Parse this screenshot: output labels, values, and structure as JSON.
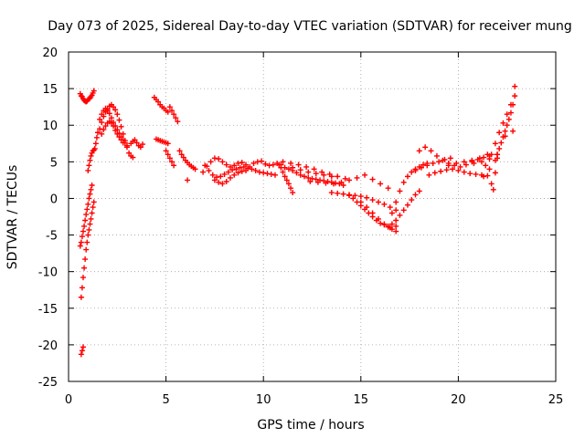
{
  "chart_data": {
    "type": "scatter",
    "title": "Day 073 of 2025, Sidereal Day-to-day VTEC variation (SDTVAR) for receiver mung",
    "xlabel": "GPS time / hours",
    "ylabel": "SDTVAR / TECUs",
    "xlim": [
      0,
      25
    ],
    "ylim": [
      -25,
      20
    ],
    "xticks": [
      "0",
      "5",
      "10",
      "15",
      "20",
      "25"
    ],
    "yticks": [
      "-25",
      "-20",
      "-15",
      "-10",
      "-5",
      "0",
      "5",
      "10",
      "15",
      "20"
    ],
    "grid": true,
    "marker": "+",
    "marker_color": "#ff0000",
    "series": [
      {
        "name": "SDTVAR",
        "x": [
          0.6,
          0.65,
          0.7,
          0.75,
          0.8,
          0.85,
          0.9,
          0.95,
          1.0,
          1.05,
          1.1,
          1.15,
          1.2,
          1.25,
          1.3,
          0.65,
          0.7,
          0.75,
          0.8,
          0.85,
          0.9,
          0.95,
          1.0,
          1.05,
          1.1,
          1.15,
          1.2,
          1.25,
          1.3,
          0.6,
          0.65,
          0.7,
          0.75,
          0.8,
          0.85,
          0.9,
          0.95,
          1.0,
          1.05,
          1.1,
          1.15,
          1.2,
          0.65,
          0.7,
          0.75,
          1.0,
          1.05,
          1.1,
          1.15,
          1.2,
          1.25,
          1.3,
          1.35,
          1.4,
          1.45,
          1.5,
          1.6,
          1.7,
          1.8,
          1.9,
          2.0,
          2.1,
          2.2,
          2.3,
          2.4,
          2.5,
          2.6,
          2.7,
          2.8,
          2.9,
          3.0,
          3.1,
          3.2,
          3.3,
          1.6,
          1.7,
          1.8,
          1.9,
          2.0,
          2.1,
          2.2,
          2.3,
          2.4,
          2.5,
          2.6,
          2.7,
          2.8,
          2.9,
          3.0,
          1.7,
          1.8,
          1.9,
          2.0,
          2.1,
          2.2,
          2.3,
          2.4,
          2.5,
          2.6,
          2.7,
          2.8,
          3.2,
          3.3,
          3.4,
          3.5,
          3.6,
          3.7,
          3.8,
          4.4,
          4.5,
          4.6,
          4.7,
          4.8,
          4.9,
          5.0,
          5.1,
          5.2,
          5.3,
          5.4,
          5.5,
          5.6,
          4.5,
          4.6,
          4.7,
          4.8,
          4.9,
          5.0,
          5.1,
          5.0,
          5.1,
          5.2,
          5.3,
          5.4,
          5.7,
          5.8,
          5.9,
          6.0,
          6.1,
          6.2,
          6.3,
          6.4,
          6.5,
          6.1,
          6.9,
          7.1,
          7.3,
          7.5,
          7.7,
          7.9,
          8.1,
          8.3,
          8.5,
          8.7,
          8.9,
          9.1,
          9.3,
          9.5,
          9.7,
          9.9,
          10.1,
          10.3,
          10.5,
          10.7,
          10.9,
          11.1,
          11.3,
          11.5,
          11.7,
          11.9,
          12.1,
          12.3,
          12.5,
          12.7,
          12.9,
          13.1,
          13.3,
          13.5,
          13.7,
          13.9,
          14.1,
          7.0,
          7.2,
          7.4,
          7.6,
          7.8,
          8.0,
          8.2,
          8.4,
          8.6,
          8.8,
          9.0,
          9.2,
          9.4,
          9.6,
          9.8,
          10.0,
          10.2,
          10.4,
          10.6,
          7.5,
          7.7,
          7.9,
          8.1,
          8.3,
          8.5,
          8.7,
          8.9,
          9.1,
          10.8,
          10.9,
          11.0,
          11.1,
          11.2,
          11.3,
          11.4,
          11.5,
          11.0,
          11.4,
          11.8,
          12.2,
          12.6,
          13.0,
          13.4,
          13.8,
          14.2,
          11.5,
          11.9,
          12.3,
          12.7,
          13.1,
          13.5,
          12.4,
          12.8,
          13.2,
          13.6,
          14.0,
          14.4,
          14.8,
          15.2,
          15.6,
          16.0,
          16.4,
          13.5,
          13.8,
          14.1,
          14.4,
          14.7,
          15.0,
          15.3,
          15.6,
          15.9,
          16.2,
          16.5,
          16.8,
          14.4,
          14.6,
          14.8,
          15.0,
          15.2,
          15.4,
          15.6,
          15.8,
          16.0,
          16.2,
          16.4,
          16.6,
          16.8,
          15.0,
          15.3,
          15.6,
          15.9,
          16.2,
          16.5,
          16.8,
          16.4,
          16.6,
          16.8,
          17.0,
          17.2,
          17.4,
          17.6,
          17.8,
          18.0,
          16.6,
          16.8,
          17.0,
          17.2,
          17.4,
          17.6,
          17.8,
          18.0,
          18.2,
          18.4,
          18.0,
          18.3,
          18.6,
          18.9,
          19.2,
          19.5,
          19.8,
          20.1,
          20.4,
          20.7,
          21.0,
          21.3,
          21.6,
          17.8,
          18.1,
          18.4,
          18.7,
          19.0,
          19.3,
          19.6,
          18.5,
          18.8,
          19.1,
          19.4,
          19.7,
          20.0,
          20.3,
          20.6,
          20.9,
          21.2,
          21.5,
          21.3,
          21.4,
          21.5,
          21.6,
          21.7,
          21.8,
          21.9,
          22.0,
          21.7,
          21.9,
          22.1,
          22.3,
          22.5,
          22.7,
          22.9,
          21.9,
          22.0,
          22.1,
          22.2,
          22.3,
          22.4,
          22.5,
          22.6,
          22.7,
          22.8,
          22.9,
          20.8,
          21.2,
          21.6,
          22.0,
          22.4,
          22.8,
          19.5,
          19.9,
          20.3,
          20.7,
          21.1
        ],
        "y": [
          14.3,
          14.0,
          13.9,
          13.6,
          13.4,
          13.3,
          13.2,
          13.3,
          13.5,
          13.6,
          13.7,
          13.9,
          14.1,
          14.4,
          14.7,
          -13.5,
          -12.2,
          -10.8,
          -9.5,
          -8.3,
          -7.0,
          -6.0,
          -5.0,
          -4.3,
          -3.5,
          -2.8,
          -2.0,
          -1.2,
          -0.5,
          -6.5,
          -6.0,
          -5.2,
          -4.5,
          -3.8,
          -3.0,
          -2.2,
          -1.5,
          -0.8,
          0.0,
          0.6,
          1.2,
          1.8,
          -21.3,
          -20.8,
          -20.3,
          3.8,
          4.5,
          5.2,
          5.8,
          6.2,
          6.5,
          6.6,
          6.8,
          7.5,
          8.3,
          9.0,
          9.5,
          10.4,
          11.2,
          11.8,
          12.2,
          12.6,
          12.8,
          12.5,
          12.1,
          11.5,
          10.7,
          9.8,
          8.8,
          7.9,
          7.0,
          6.2,
          5.8,
          5.6,
          10.8,
          11.5,
          12.0,
          12.3,
          12.0,
          11.6,
          11.0,
          10.4,
          9.9,
          9.4,
          8.9,
          8.4,
          8.0,
          7.6,
          7.2,
          8.8,
          9.4,
          9.9,
          10.3,
          10.5,
          10.3,
          9.9,
          9.3,
          8.8,
          8.4,
          8.0,
          7.6,
          7.5,
          7.8,
          8.0,
          7.6,
          7.2,
          7.0,
          7.4,
          13.8,
          13.5,
          13.2,
          12.8,
          12.5,
          12.3,
          12.0,
          11.8,
          12.5,
          12.0,
          11.5,
          11.0,
          10.5,
          8.1,
          8.0,
          7.9,
          7.8,
          7.7,
          7.6,
          7.5,
          6.5,
          6.0,
          5.5,
          5.0,
          4.5,
          6.5,
          6.0,
          5.6,
          5.2,
          4.9,
          4.6,
          4.4,
          4.2,
          4.0,
          2.5,
          3.6,
          4.4,
          5.0,
          5.5,
          5.4,
          5.0,
          4.6,
          4.3,
          4.5,
          4.8,
          4.9,
          4.6,
          4.3,
          4.8,
          5.0,
          5.1,
          4.7,
          4.5,
          4.6,
          4.8,
          4.6,
          4.2,
          4.0,
          3.8,
          3.5,
          3.2,
          3.0,
          2.8,
          2.7,
          2.6,
          2.5,
          2.4,
          2.3,
          2.2,
          2.1,
          2.0,
          1.8,
          4.5,
          3.8,
          3.2,
          2.9,
          3.0,
          3.3,
          3.6,
          3.9,
          4.0,
          4.2,
          4.3,
          4.1,
          4.0,
          3.8,
          3.6,
          3.5,
          3.4,
          3.3,
          3.2,
          2.5,
          2.2,
          2.0,
          2.3,
          2.8,
          3.2,
          3.5,
          3.7,
          3.8,
          4.6,
          4.2,
          3.6,
          3.0,
          2.5,
          2.0,
          1.4,
          0.8,
          5.0,
          4.8,
          4.6,
          4.3,
          4.0,
          3.6,
          3.3,
          3.0,
          2.7,
          4.2,
          3.9,
          3.6,
          3.4,
          3.2,
          3.0,
          2.3,
          2.2,
          2.1,
          2.0,
          2.2,
          2.5,
          2.8,
          3.2,
          2.6,
          2.0,
          1.4,
          0.8,
          0.7,
          0.6,
          0.5,
          0.4,
          0.3,
          0.1,
          -0.2,
          -0.5,
          -0.8,
          -1.2,
          -1.6,
          0.4,
          0.0,
          -0.5,
          -1.0,
          -1.5,
          -2.0,
          -2.5,
          -3.0,
          -3.4,
          -3.6,
          -3.9,
          -4.2,
          -4.5,
          -0.5,
          -1.2,
          -2.0,
          -2.8,
          -3.5,
          -4.0,
          -3.8,
          -3.8,
          -3.5,
          -3.0,
          -2.3,
          -1.6,
          -0.9,
          -0.2,
          0.5,
          1.0,
          -2.0,
          -0.5,
          1.0,
          2.2,
          3.0,
          3.6,
          4.0,
          4.3,
          4.6,
          4.8,
          6.5,
          7.0,
          6.5,
          5.8,
          5.2,
          4.8,
          4.5,
          4.3,
          4.6,
          5.0,
          5.3,
          5.6,
          5.8,
          3.8,
          4.2,
          4.5,
          4.8,
          5.0,
          5.3,
          5.5,
          3.2,
          3.5,
          3.7,
          3.9,
          4.0,
          3.8,
          3.6,
          3.4,
          3.3,
          3.2,
          3.1,
          3.0,
          4.5,
          6.0,
          4.0,
          2.0,
          1.2,
          3.5,
          5.5,
          6.0,
          7.5,
          9.0,
          10.3,
          11.5,
          12.8,
          14.0,
          5.2,
          6.0,
          6.8,
          7.6,
          8.4,
          9.2,
          10.0,
          10.8,
          11.7,
          12.8,
          15.3,
          4.8,
          5.0,
          5.4,
          6.0,
          8.5,
          9.2,
          4.5,
          4.8,
          5.0,
          5.2,
          5.5
        ]
      }
    ]
  }
}
